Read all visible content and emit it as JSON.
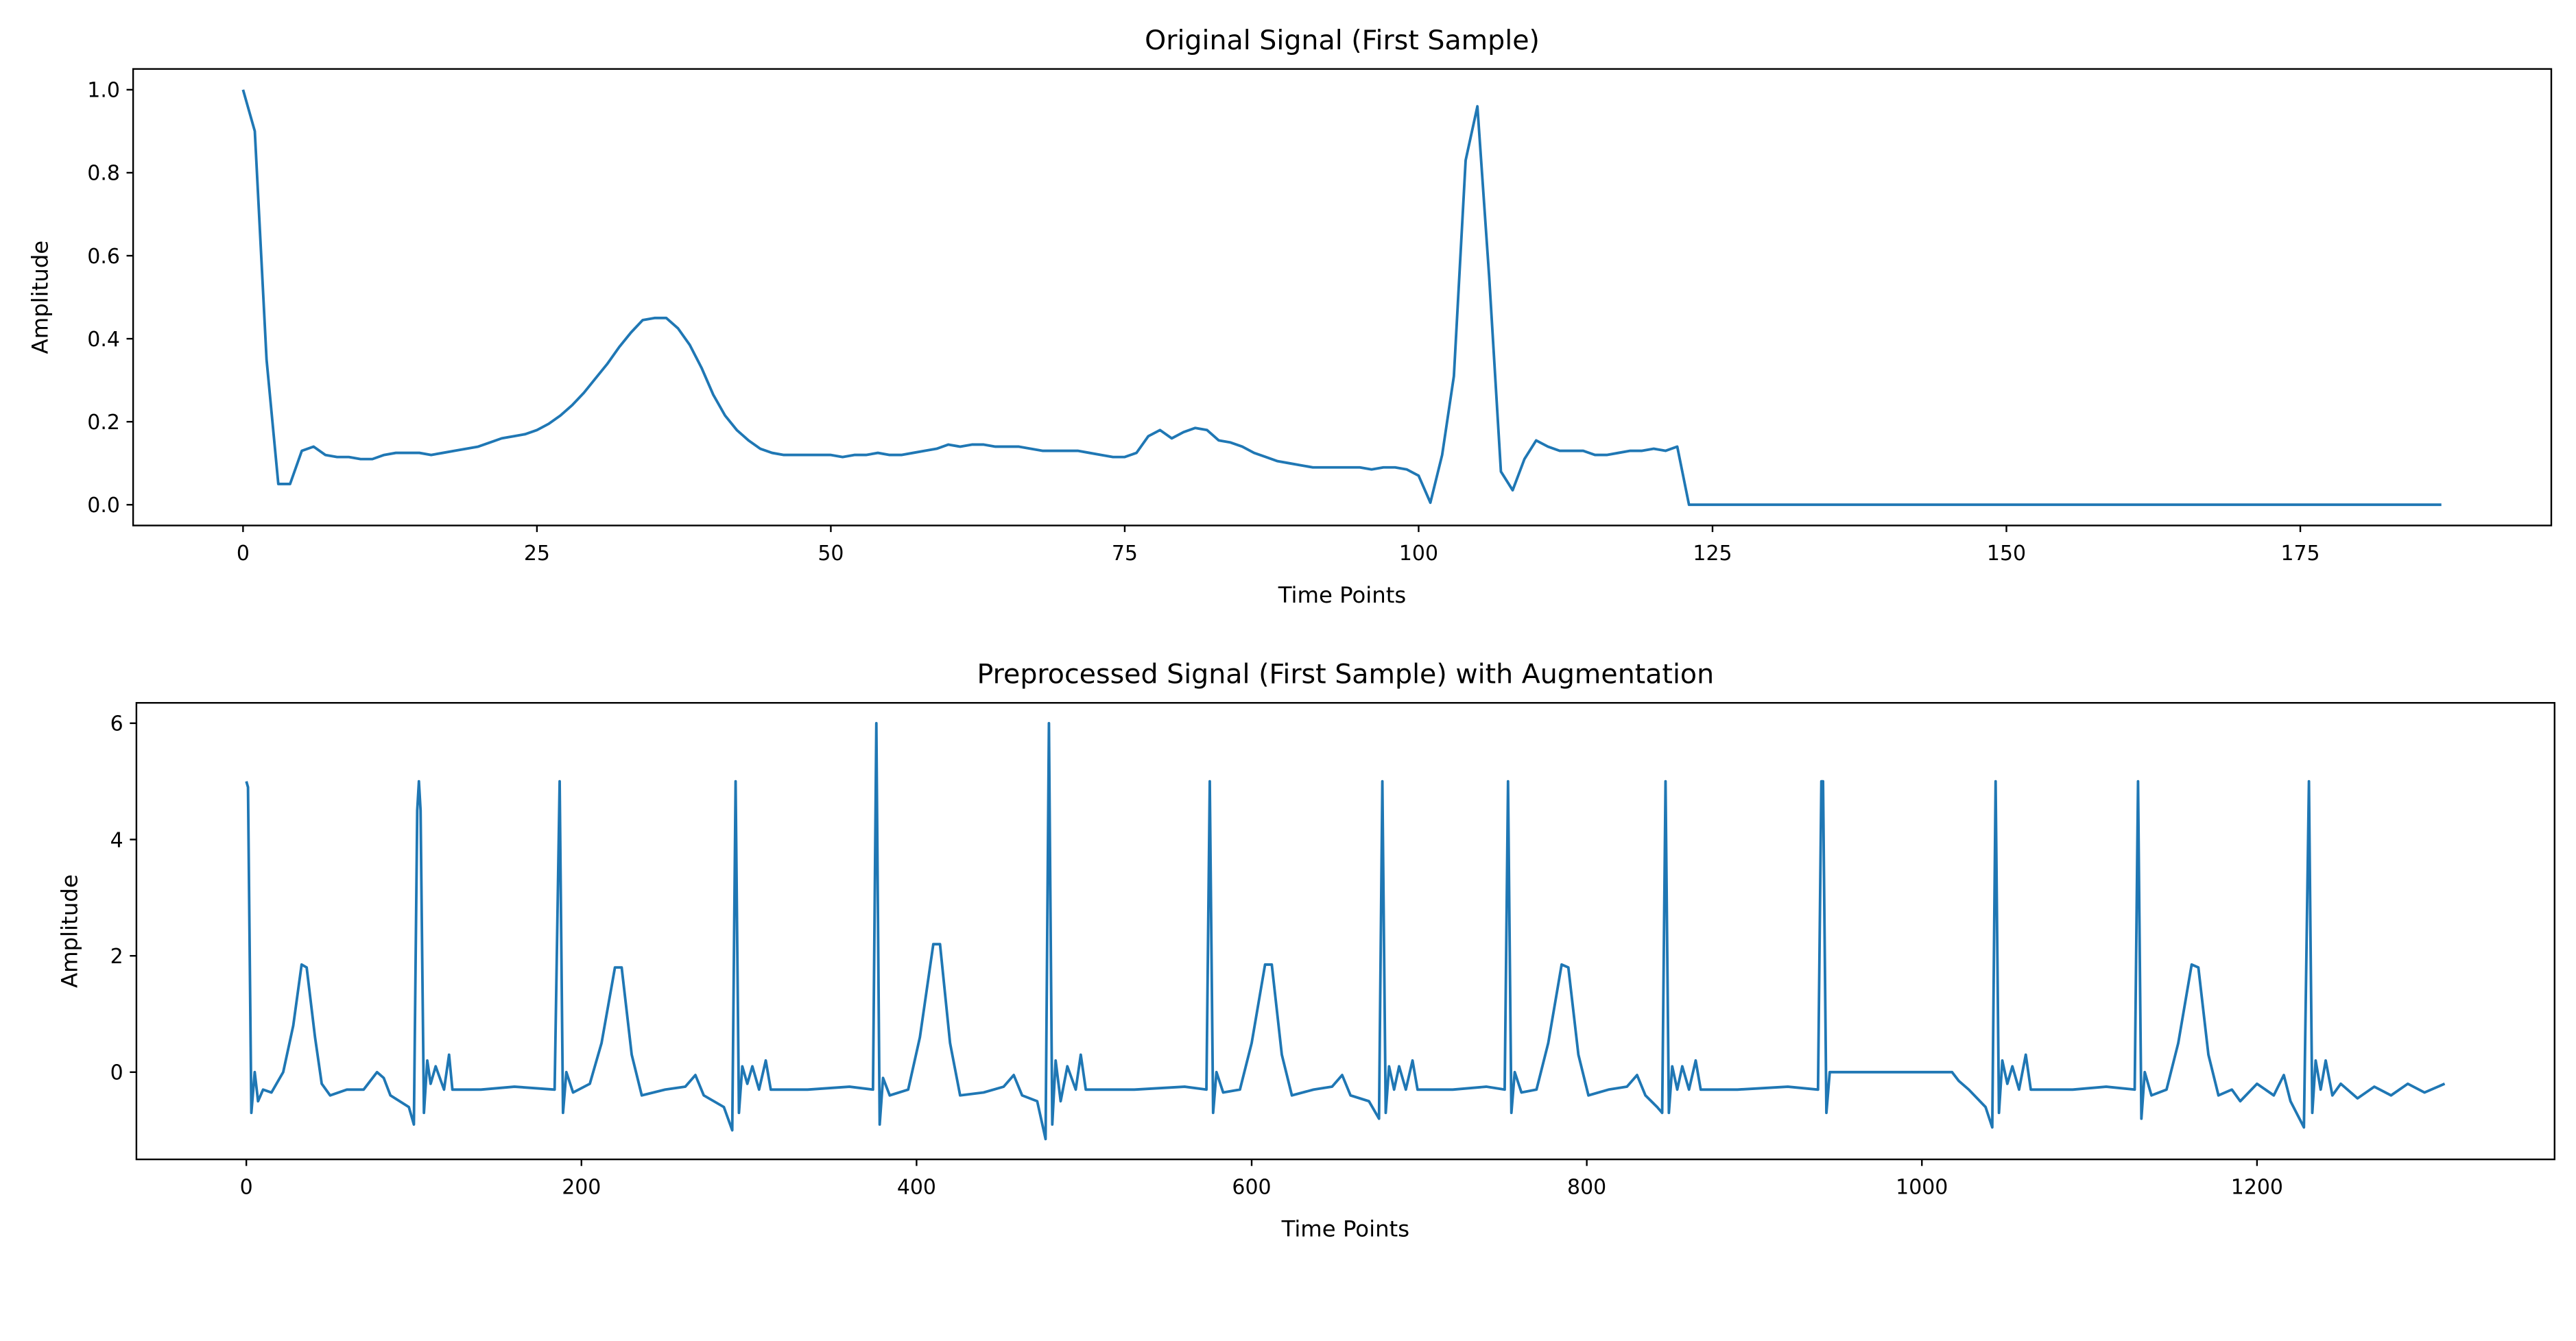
{
  "chart_data": [
    {
      "type": "line",
      "title": "Original Signal (First Sample)",
      "xlabel": "Time Points",
      "ylabel": "Amplitude",
      "xlim": [
        -9.35,
        196.35
      ],
      "ylim": [
        -0.05,
        1.05
      ],
      "xticks": [
        0,
        25,
        50,
        75,
        100,
        125,
        150,
        175
      ],
      "yticks": [
        {
          "value": 0,
          "label": "0.0"
        },
        {
          "value": 0.2,
          "label": "0.2"
        },
        {
          "value": 0.4,
          "label": "0.4"
        },
        {
          "value": 0.6,
          "label": "0.6"
        },
        {
          "value": 0.8,
          "label": "0.8"
        },
        {
          "value": 1,
          "label": "1.0"
        }
      ],
      "color": "#1f77b4",
      "x": [
        0,
        1,
        2,
        3,
        4,
        5,
        6,
        7,
        8,
        9,
        10,
        11,
        12,
        13,
        14,
        15,
        16,
        17,
        18,
        19,
        20,
        21,
        22,
        23,
        24,
        25,
        26,
        27,
        28,
        29,
        30,
        31,
        32,
        33,
        34,
        35,
        36,
        37,
        38,
        39,
        40,
        41,
        42,
        43,
        44,
        45,
        46,
        47,
        48,
        49,
        50,
        51,
        52,
        53,
        54,
        55,
        56,
        57,
        58,
        59,
        60,
        61,
        62,
        63,
        64,
        65,
        66,
        67,
        68,
        69,
        70,
        71,
        72,
        73,
        74,
        75,
        76,
        77,
        78,
        79,
        80,
        81,
        82,
        83,
        84,
        85,
        86,
        87,
        88,
        89,
        90,
        91,
        92,
        93,
        94,
        95,
        96,
        97,
        98,
        99,
        100,
        101,
        102,
        103,
        104,
        105,
        106,
        107,
        108,
        109,
        110,
        111,
        112,
        113,
        114,
        115,
        116,
        117,
        118,
        119,
        120,
        121,
        122,
        123,
        187
      ],
      "values": [
        1.0,
        0.9,
        0.35,
        0.05,
        0.05,
        0.13,
        0.14,
        0.12,
        0.115,
        0.115,
        0.11,
        0.11,
        0.12,
        0.125,
        0.125,
        0.125,
        0.12,
        0.125,
        0.13,
        0.135,
        0.14,
        0.15,
        0.16,
        0.165,
        0.17,
        0.18,
        0.195,
        0.215,
        0.24,
        0.27,
        0.305,
        0.34,
        0.38,
        0.415,
        0.445,
        0.45,
        0.45,
        0.425,
        0.385,
        0.33,
        0.265,
        0.215,
        0.18,
        0.155,
        0.135,
        0.125,
        0.12,
        0.12,
        0.12,
        0.12,
        0.12,
        0.115,
        0.12,
        0.12,
        0.125,
        0.12,
        0.12,
        0.125,
        0.13,
        0.135,
        0.145,
        0.14,
        0.145,
        0.145,
        0.14,
        0.14,
        0.14,
        0.135,
        0.13,
        0.13,
        0.13,
        0.13,
        0.125,
        0.12,
        0.115,
        0.115,
        0.125,
        0.165,
        0.18,
        0.16,
        0.175,
        0.185,
        0.18,
        0.155,
        0.15,
        0.14,
        0.125,
        0.115,
        0.105,
        0.1,
        0.095,
        0.09,
        0.09,
        0.09,
        0.09,
        0.09,
        0.085,
        0.09,
        0.09,
        0.085,
        0.07,
        0.005,
        0.12,
        0.31,
        0.83,
        0.96,
        0.55,
        0.08,
        0.035,
        0.11,
        0.155,
        0.14,
        0.13,
        0.13,
        0.13,
        0.12,
        0.12,
        0.125,
        0.13,
        0.13,
        0.135,
        0.13,
        0.14,
        0,
        0
      ]
    },
    {
      "type": "line",
      "title": "Preprocessed Signal (First Sample) with Augmentation",
      "xlabel": "Time Points",
      "ylabel": "Amplitude",
      "xlim": [
        -65.6,
        1377.6
      ],
      "ylim": [
        -1.5,
        6.35
      ],
      "xticks": [
        0,
        200,
        400,
        600,
        800,
        1000,
        1200
      ],
      "yticks": [
        0,
        2,
        4,
        6
      ],
      "color": "#1f77b4",
      "x": [
        0,
        1,
        3,
        5,
        7,
        10,
        15,
        22,
        28,
        33,
        36,
        41,
        45,
        50,
        60,
        70,
        78,
        82,
        86,
        97,
        100,
        102,
        103,
        104,
        106,
        108,
        110,
        113,
        118,
        121,
        123,
        140,
        160,
        184,
        187,
        189,
        191,
        195,
        205,
        212,
        220,
        224,
        230,
        236,
        250,
        262,
        268,
        273,
        285,
        290,
        292,
        294,
        296,
        299,
        302,
        306,
        310,
        313,
        335,
        360,
        374,
        376,
        378,
        380,
        384,
        395,
        402,
        410,
        414,
        420,
        426,
        440,
        452,
        458,
        463,
        472,
        477,
        479,
        481,
        483,
        486,
        490,
        495,
        498,
        501,
        530,
        560,
        573,
        575,
        577,
        579,
        583,
        593,
        600,
        608,
        612,
        618,
        624,
        637,
        648,
        654,
        659,
        670,
        676,
        678,
        680,
        682,
        685,
        688,
        692,
        696,
        699,
        720,
        740,
        751,
        753,
        755,
        757,
        761,
        770,
        777,
        785,
        789,
        795,
        801,
        813,
        824,
        830,
        835,
        842,
        845,
        847,
        849,
        851,
        854,
        857,
        861,
        865,
        868,
        890,
        920,
        938,
        940,
        941,
        943,
        945,
        1018,
        1022,
        1028,
        1038,
        1042,
        1044,
        1046,
        1048,
        1051,
        1054,
        1058,
        1062,
        1065,
        1090,
        1110,
        1127,
        1129,
        1131,
        1133,
        1137,
        1146,
        1153,
        1161,
        1165,
        1171,
        1177,
        1185,
        1190,
        1200,
        1210,
        1216,
        1220,
        1228,
        1231,
        1233,
        1235,
        1238,
        1241,
        1245,
        1250,
        1260,
        1270,
        1280,
        1290,
        1300,
        1312
      ],
      "values": [
        5,
        4.9,
        -0.7,
        0,
        -0.5,
        -0.3,
        -0.35,
        0,
        0.8,
        1.85,
        1.8,
        0.6,
        -0.2,
        -0.4,
        -0.3,
        -0.3,
        0,
        -0.1,
        -0.4,
        -0.6,
        -0.9,
        4.5,
        5,
        4.5,
        -0.7,
        0.2,
        -0.2,
        0.1,
        -0.3,
        0.3,
        -0.3,
        -0.3,
        -0.25,
        -0.3,
        5,
        -0.7,
        0,
        -0.35,
        -0.2,
        0.5,
        1.8,
        1.8,
        0.3,
        -0.4,
        -0.3,
        -0.25,
        -0.05,
        -0.4,
        -0.6,
        -1.0,
        5,
        -0.7,
        0.1,
        -0.2,
        0.1,
        -0.3,
        0.2,
        -0.3,
        -0.3,
        -0.25,
        -0.3,
        6,
        -0.9,
        -0.1,
        -0.4,
        -0.3,
        0.6,
        2.2,
        2.2,
        0.5,
        -0.4,
        -0.35,
        -0.25,
        -0.05,
        -0.4,
        -0.5,
        -1.15,
        6,
        -0.9,
        0.2,
        -0.5,
        0.1,
        -0.3,
        0.3,
        -0.3,
        -0.3,
        -0.25,
        -0.3,
        5,
        -0.7,
        0,
        -0.35,
        -0.3,
        0.5,
        1.85,
        1.85,
        0.3,
        -0.4,
        -0.3,
        -0.25,
        -0.05,
        -0.4,
        -0.5,
        -0.8,
        5,
        -0.7,
        0.1,
        -0.3,
        0.1,
        -0.3,
        0.2,
        -0.3,
        -0.3,
        -0.25,
        -0.3,
        5,
        -0.7,
        0,
        -0.35,
        -0.3,
        0.5,
        1.85,
        1.8,
        0.3,
        -0.4,
        -0.3,
        -0.25,
        -0.05,
        -0.4,
        -0.6,
        -0.7,
        5,
        -0.7,
        0.1,
        -0.3,
        0.1,
        -0.3,
        0.2,
        -0.3,
        -0.3,
        -0.25,
        -0.3,
        5,
        5,
        -0.7,
        0,
        0,
        -0.15,
        -0.3,
        -0.6,
        -0.95,
        5,
        -0.7,
        0.2,
        -0.2,
        0.1,
        -0.3,
        0.3,
        -0.3,
        -0.3,
        -0.25,
        -0.3,
        5,
        -0.8,
        0,
        -0.4,
        -0.3,
        0.5,
        1.85,
        1.8,
        0.3,
        -0.4,
        -0.3,
        -0.5,
        -0.2,
        -0.4,
        -0.05,
        -0.5,
        -0.95,
        5,
        -0.7,
        0.2,
        -0.3,
        0.2,
        -0.4,
        -0.2,
        -0.45,
        -0.25,
        -0.4,
        -0.2,
        -0.35,
        -0.2
      ]
    }
  ]
}
